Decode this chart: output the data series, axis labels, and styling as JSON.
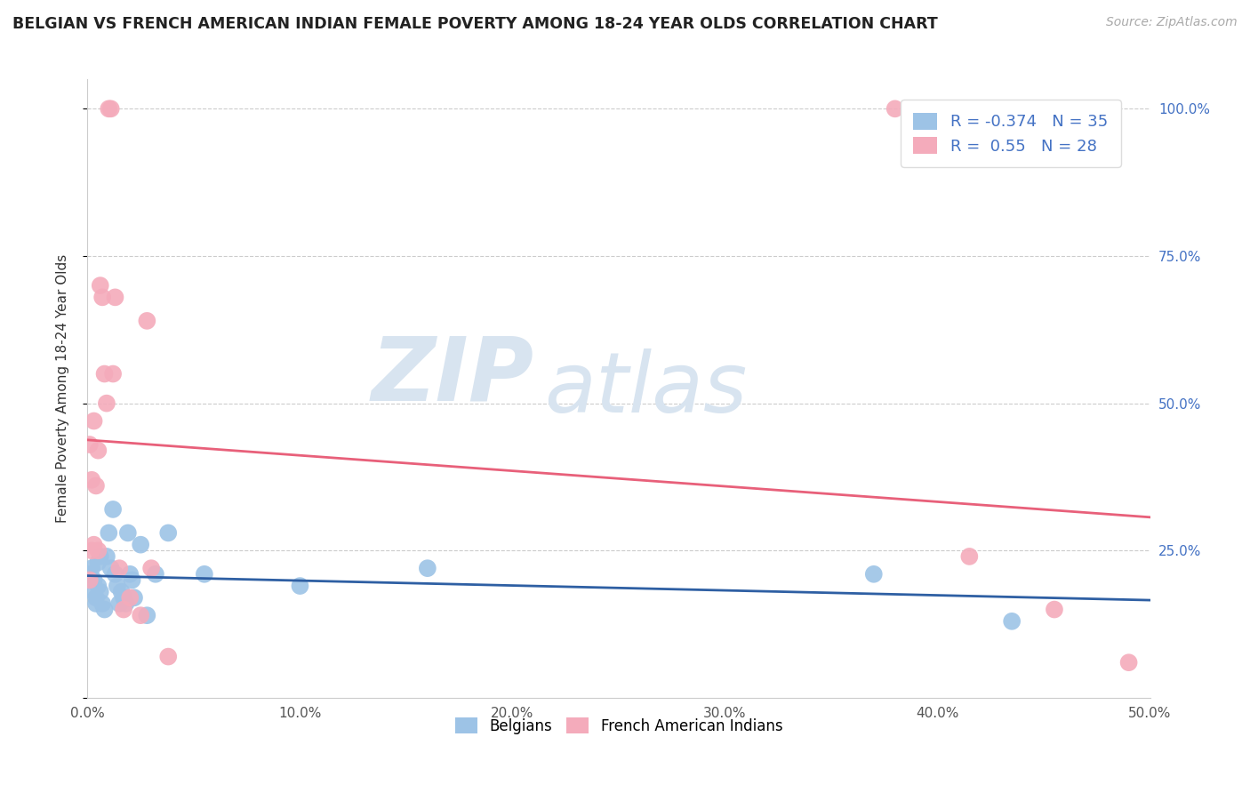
{
  "title": "BELGIAN VS FRENCH AMERICAN INDIAN FEMALE POVERTY AMONG 18-24 YEAR OLDS CORRELATION CHART",
  "source": "Source: ZipAtlas.com",
  "ylabel": "Female Poverty Among 18-24 Year Olds",
  "xlim": [
    0.0,
    0.5
  ],
  "ylim": [
    0.0,
    1.05
  ],
  "xticks": [
    0.0,
    0.1,
    0.2,
    0.3,
    0.4,
    0.5
  ],
  "xticklabels": [
    "0.0%",
    "10.0%",
    "20.0%",
    "30.0%",
    "40.0%",
    "50.0%"
  ],
  "yticks_right": [
    0.25,
    0.5,
    0.75,
    1.0
  ],
  "yticklabels_right": [
    "25.0%",
    "50.0%",
    "75.0%",
    "100.0%"
  ],
  "belgian_R": -0.374,
  "belgian_N": 35,
  "french_R": 0.55,
  "french_N": 28,
  "belgian_color": "#9DC3E6",
  "french_color": "#F4ABBB",
  "belgian_line_color": "#2E5FA3",
  "french_line_color": "#E8607A",
  "watermark_zip": "ZIP",
  "watermark_atlas": "atlas",
  "legend_text_color": "#4472C4",
  "grid_color": "#CCCCCC",
  "belgians_x": [
    0.001,
    0.002,
    0.003,
    0.003,
    0.004,
    0.004,
    0.005,
    0.005,
    0.006,
    0.006,
    0.007,
    0.008,
    0.009,
    0.01,
    0.011,
    0.012,
    0.013,
    0.014,
    0.015,
    0.016,
    0.017,
    0.018,
    0.019,
    0.02,
    0.021,
    0.022,
    0.025,
    0.028,
    0.032,
    0.038,
    0.055,
    0.1,
    0.16,
    0.37,
    0.435
  ],
  "belgians_y": [
    0.21,
    0.22,
    0.2,
    0.18,
    0.17,
    0.16,
    0.23,
    0.19,
    0.24,
    0.18,
    0.16,
    0.15,
    0.24,
    0.28,
    0.22,
    0.32,
    0.21,
    0.19,
    0.16,
    0.18,
    0.17,
    0.16,
    0.28,
    0.21,
    0.2,
    0.17,
    0.26,
    0.14,
    0.21,
    0.28,
    0.21,
    0.19,
    0.22,
    0.21,
    0.13
  ],
  "french_x": [
    0.001,
    0.001,
    0.002,
    0.002,
    0.003,
    0.003,
    0.004,
    0.005,
    0.005,
    0.006,
    0.007,
    0.008,
    0.009,
    0.01,
    0.011,
    0.012,
    0.013,
    0.015,
    0.017,
    0.02,
    0.025,
    0.028,
    0.03,
    0.038,
    0.38,
    0.415,
    0.455,
    0.49
  ],
  "french_y": [
    0.43,
    0.2,
    0.37,
    0.25,
    0.47,
    0.26,
    0.36,
    0.42,
    0.25,
    0.7,
    0.68,
    0.55,
    0.5,
    1.0,
    1.0,
    0.55,
    0.68,
    0.22,
    0.15,
    0.17,
    0.14,
    0.64,
    0.22,
    0.07,
    1.0,
    0.24,
    0.15,
    0.06
  ]
}
